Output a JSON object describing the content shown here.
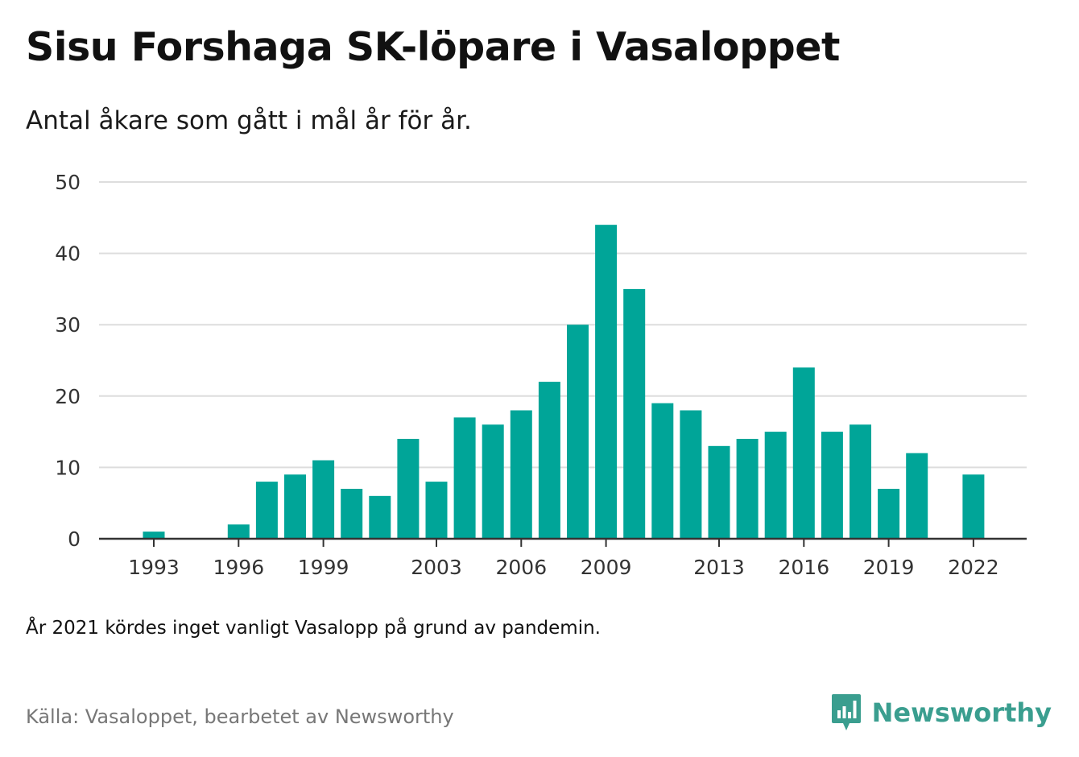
{
  "header": {
    "title": "Sisu Forshaga SK-löpare i Vasaloppet",
    "subtitle": "Antal åkare som gått i mål år för år."
  },
  "footer": {
    "note": "År 2021 kördes inget vanligt Vasalopp på grund av pandemin.",
    "source": "Källa: Vasaloppet, bearbetet av Newsworthy",
    "brand": "Newsworthy"
  },
  "colors": {
    "bar": "#00a598",
    "grid": "#dddddd",
    "axis": "#333333",
    "brand": "#3a9e8f"
  },
  "chart_data": {
    "type": "bar",
    "title": "Sisu Forshaga SK-löpare i Vasaloppet",
    "subtitle": "Antal åkare som gått i mål år för år.",
    "xlabel": "",
    "ylabel": "",
    "ylim": [
      0,
      50
    ],
    "yticks": [
      0,
      10,
      20,
      30,
      40,
      50
    ],
    "xticks": [
      1993,
      1996,
      1999,
      2003,
      2006,
      2009,
      2013,
      2016,
      2019,
      2022
    ],
    "grid": true,
    "x": [
      1993,
      1994,
      1995,
      1996,
      1997,
      1998,
      1999,
      2000,
      2001,
      2002,
      2003,
      2004,
      2005,
      2006,
      2007,
      2008,
      2009,
      2010,
      2011,
      2012,
      2013,
      2014,
      2015,
      2016,
      2017,
      2018,
      2019,
      2020,
      2021,
      2022
    ],
    "values": [
      1,
      0,
      0,
      2,
      8,
      9,
      11,
      7,
      6,
      14,
      8,
      17,
      16,
      18,
      22,
      30,
      44,
      35,
      19,
      18,
      13,
      14,
      15,
      24,
      15,
      16,
      7,
      12,
      0,
      9
    ]
  }
}
